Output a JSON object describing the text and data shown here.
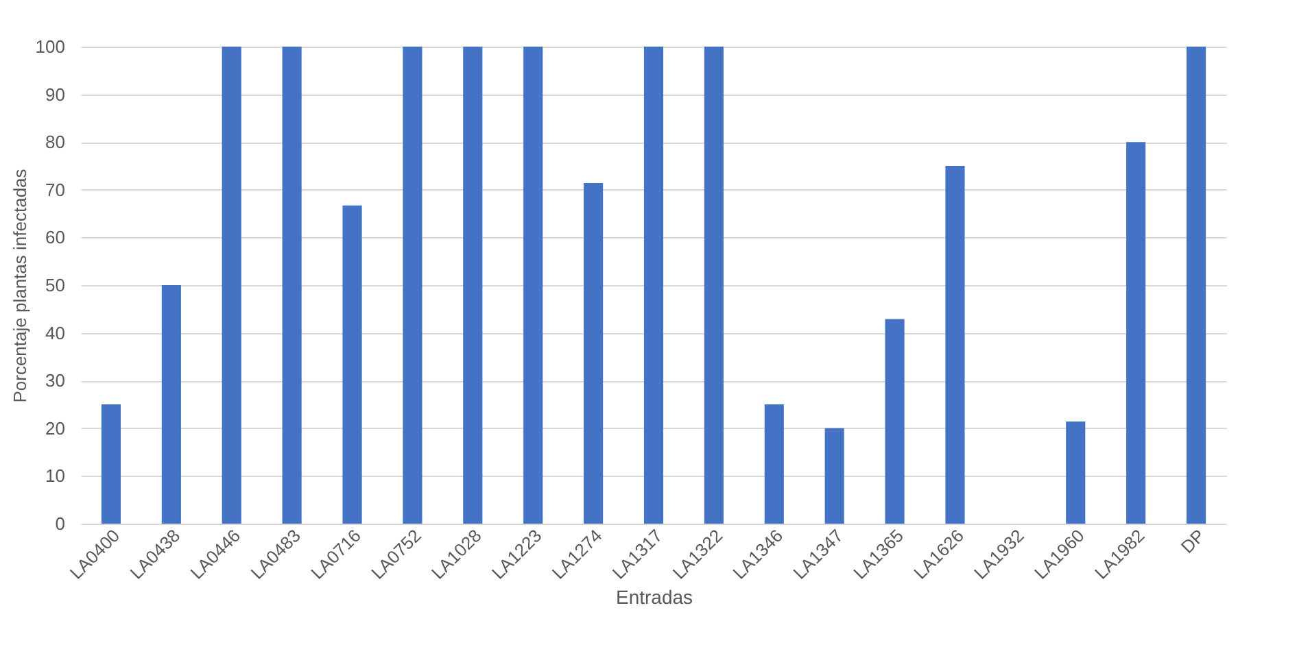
{
  "chart_data": {
    "type": "bar",
    "xlabel": "Entradas",
    "ylabel": "Porcentaje plantas infectadas",
    "categories": [
      "LA0400",
      "LA0438",
      "LA0446",
      "LA0483",
      "LA0716",
      "LA0752",
      "LA1028",
      "LA1223",
      "LA1274",
      "LA1317",
      "LA1322",
      "LA1346",
      "LA1347",
      "LA1365",
      "LA1626",
      "LA1932",
      "LA1960",
      "LA1982",
      "DP"
    ],
    "values": [
      25,
      50,
      100,
      100,
      66.7,
      100,
      100,
      100,
      71.4,
      100,
      100,
      25,
      20,
      42.9,
      75,
      0,
      21.4,
      80,
      100
    ],
    "color": "#4472c4",
    "ylim": [
      0,
      100
    ],
    "yticks": [
      0,
      10,
      20,
      30,
      40,
      50,
      60,
      70,
      80,
      90,
      100
    ],
    "grid": "y"
  }
}
